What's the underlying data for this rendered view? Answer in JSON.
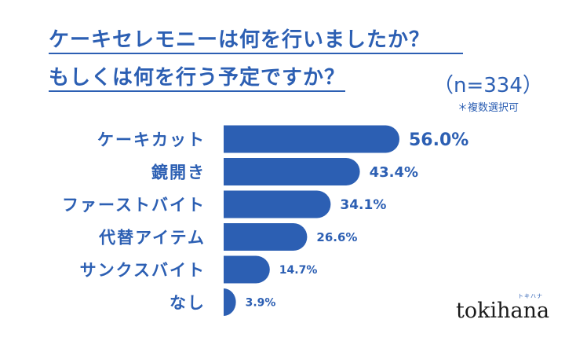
{
  "title_line1": "ケーキセレモニーは何を行いましたか？",
  "title_line2": "もしくは何を行う予定ですか？",
  "sample_size": "（n=334）",
  "note": "＊複数選択可",
  "brand": "tokihana",
  "brand_kana": "トキハナ",
  "colors": {
    "accent": "#2c5fb3",
    "bar": "#2c5fb3"
  },
  "chart_data": {
    "type": "bar",
    "orientation": "horizontal",
    "title": "ケーキセレモニーは何を行いましたか？ もしくは何を行う予定ですか？",
    "categories": [
      "ケーキカット",
      "鏡開き",
      "ファーストバイト",
      "代替アイテム",
      "サンクスバイト",
      "なし"
    ],
    "values": [
      56.0,
      43.4,
      34.1,
      26.6,
      14.7,
      3.9
    ],
    "value_labels": [
      "56.0%",
      "43.4%",
      "34.1%",
      "26.6%",
      "14.7%",
      "3.9%"
    ],
    "unit": "%",
    "grid": false,
    "legend": "none"
  }
}
